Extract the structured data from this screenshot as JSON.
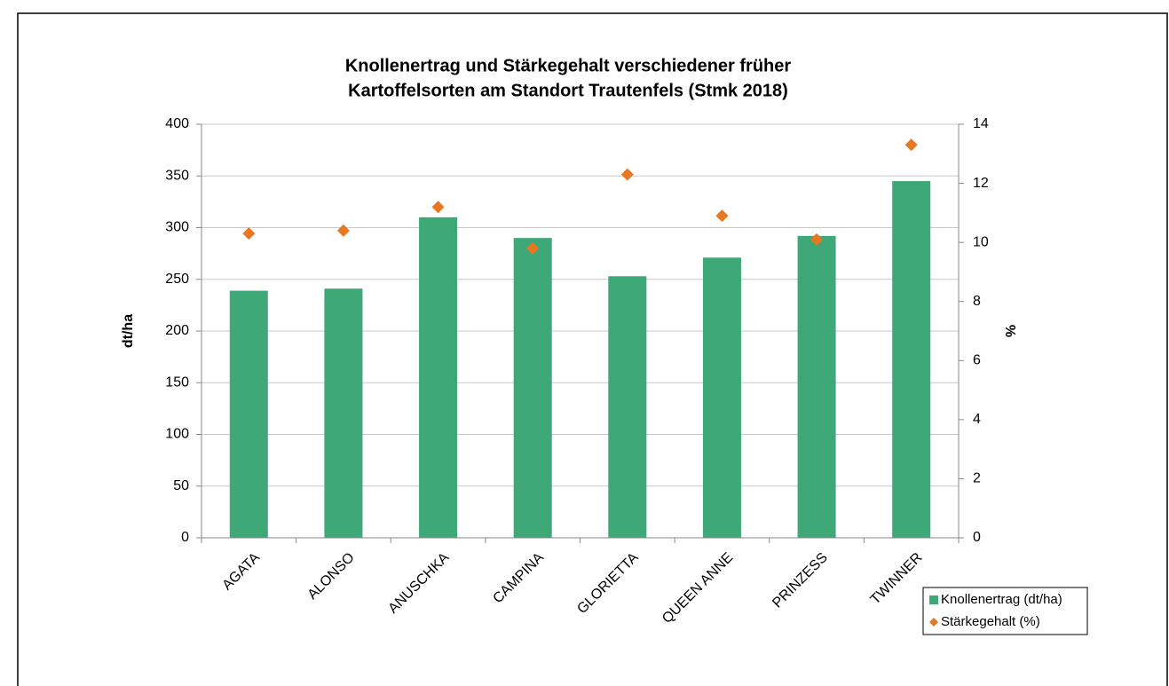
{
  "chart_data": {
    "type": "bar+scatter",
    "title": [
      "Knollenertrag und Stärkegehalt verschiedener früher",
      "Kartoffelsorten am Standort Trautenfels (Stmk 2018)"
    ],
    "ylabel": "dt/ha",
    "y2label": "%",
    "categories": [
      "AGATA",
      "ALONSO",
      "ANUSCHKA",
      "CAMPINA",
      "GLORIETTA",
      "QUEEN ANNE",
      "PRINZESS",
      "TWINNER"
    ],
    "series": [
      {
        "name": "Knollenertrag (dt/ha)",
        "color": "#3fa877",
        "type": "bar",
        "values": [
          239,
          241,
          310,
          290,
          253,
          271,
          292,
          345
        ]
      },
      {
        "name": "Stärkegehalt (%)",
        "color": "#e87722",
        "type": "scatter",
        "axis": "y2",
        "values": [
          10.3,
          10.4,
          11.2,
          9.8,
          12.3,
          10.9,
          10.1,
          13.3
        ]
      }
    ],
    "ylim": [
      0,
      400
    ],
    "yticks": [
      0,
      50,
      100,
      150,
      200,
      250,
      300,
      350,
      400
    ],
    "y2lim": [
      0,
      14
    ],
    "y2ticks": [
      0,
      2,
      4,
      6,
      8,
      10,
      12,
      14
    ],
    "grid": true,
    "legend": "lower right"
  }
}
